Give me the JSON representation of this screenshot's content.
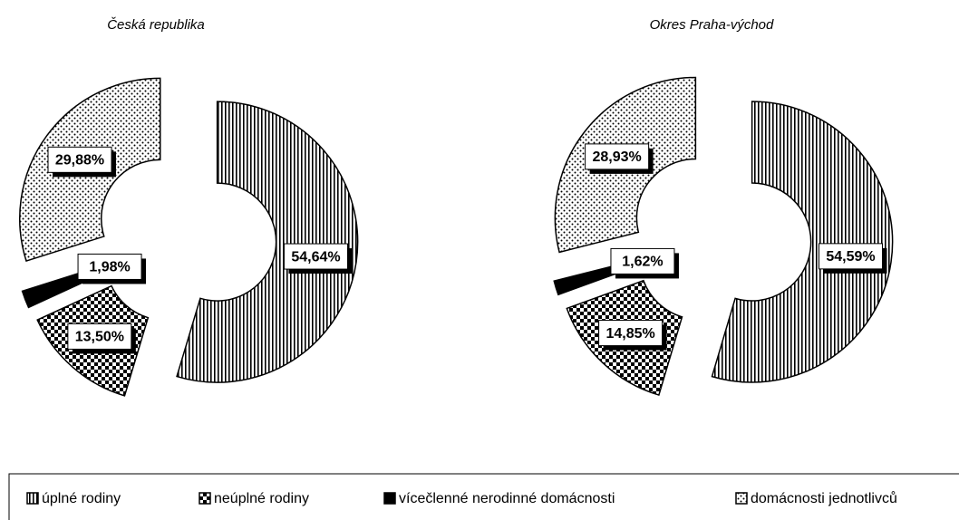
{
  "chart_data": {
    "type": "donut",
    "categories": [
      "úplné rodiny",
      "neúplné rodiny",
      "vícečlenné nerodinné domácnosti",
      "domácnosti jednotlivců"
    ],
    "series": [
      {
        "name": "Česká republika",
        "values": [
          54.64,
          13.5,
          1.98,
          29.88
        ],
        "value_labels": [
          "54,64%",
          "13,50%",
          "1,98%",
          "29,88%"
        ]
      },
      {
        "name": "Okres Praha-východ",
        "values": [
          54.59,
          14.85,
          1.62,
          28.93
        ],
        "value_labels": [
          "54,59%",
          "14,85%",
          "1,62%",
          "28,93%"
        ]
      }
    ]
  }
}
